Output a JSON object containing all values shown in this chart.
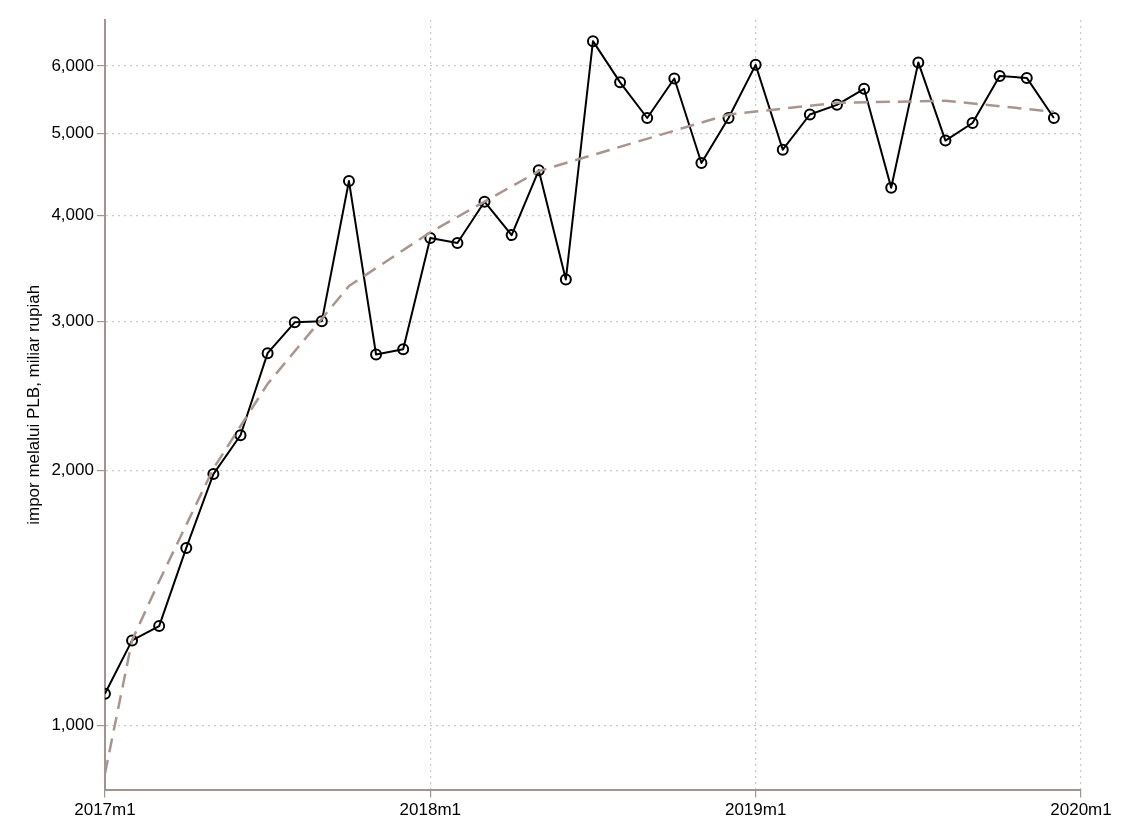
{
  "chart_data": {
    "type": "line",
    "ylabel": "impor melalui PLB, miliar rupiah",
    "log": "y",
    "grid": true,
    "legend": false,
    "xlim": [
      "2017-01",
      "2020-01"
    ],
    "xticks": [
      {
        "value": "2017-01",
        "label": "2017m1"
      },
      {
        "value": "2018-01",
        "label": "2018m1"
      },
      {
        "value": "2019-01",
        "label": "2019m1"
      },
      {
        "value": "2020-01",
        "label": "2020m1"
      }
    ],
    "ylim": [
      840,
      6800
    ],
    "yticks": [
      {
        "value": 1000,
        "label": "1,000"
      },
      {
        "value": 2000,
        "label": "2,000"
      },
      {
        "value": 3000,
        "label": "3,000"
      },
      {
        "value": 4000,
        "label": "4,000"
      },
      {
        "value": 5000,
        "label": "5,000"
      },
      {
        "value": 6000,
        "label": "6,000"
      }
    ],
    "series": [
      {
        "color": "#000000",
        "marker": "circle",
        "line_style": "solid",
        "x": [
          "2017-01",
          "2017-02",
          "2017-03",
          "2017-04",
          "2017-05",
          "2017-06",
          "2017-07",
          "2017-08",
          "2017-09",
          "2017-10",
          "2017-11",
          "2017-12",
          "2018-01",
          "2018-02",
          "2018-03",
          "2018-04",
          "2018-05",
          "2018-06",
          "2018-07",
          "2018-08",
          "2018-09",
          "2018-10",
          "2018-11",
          "2018-12",
          "2019-01",
          "2019-02",
          "2019-03",
          "2019-04",
          "2019-05",
          "2019-06",
          "2019-07",
          "2019-08",
          "2019-09",
          "2019-10",
          "2019-11",
          "2019-12"
        ],
        "values": [
          1090,
          1260,
          1310,
          1620,
          1980,
          2200,
          2750,
          2990,
          3000,
          4390,
          2740,
          2780,
          3760,
          3710,
          4150,
          3790,
          4520,
          3360,
          6420,
          5740,
          5210,
          5800,
          4610,
          5210,
          6020,
          4780,
          5260,
          5400,
          5640,
          4310,
          6060,
          4900,
          5140,
          5840,
          5810,
          5210
        ]
      },
      {
        "color": "#a8968e",
        "marker": "none",
        "line_style": "dashed",
        "x": [
          "2017-01",
          "2017-02",
          "2017-03",
          "2017-05",
          "2017-07",
          "2017-10",
          "2018-01",
          "2018-05",
          "2018-12",
          "2019-04",
          "2019-08",
          "2019-12"
        ],
        "values": [
          877,
          1260,
          1480,
          2010,
          2530,
          3300,
          3820,
          4510,
          5260,
          5430,
          5460,
          5300
        ]
      }
    ]
  }
}
